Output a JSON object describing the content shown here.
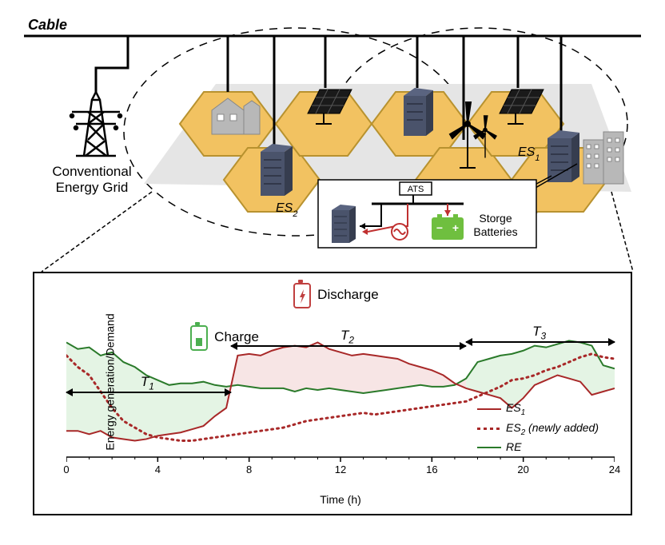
{
  "top": {
    "cable_label": "Cable",
    "grid_label_line1": "Conventional",
    "grid_label_line2": "Energy Grid",
    "es1_label": "ES",
    "es1_sub": "1",
    "es2_label": "ES",
    "es2_sub": "2",
    "ats_label": "ATS",
    "storage_label_line1": "Storge",
    "storage_label_line2": "Batteries",
    "colors": {
      "hex_fill": "#f2c261",
      "hex_stroke": "#b8922f",
      "server_fill": "#4a536b",
      "building_fill": "#b8b8b8",
      "cloud_stroke": "#000000",
      "battery_fill": "#6fbf3f",
      "ac_symbol": "#c03030"
    }
  },
  "chart": {
    "type": "line",
    "x_label": "Time (h)",
    "y_label": "Energy generation/Demand",
    "xlim": [
      0,
      24
    ],
    "xticks": [
      0,
      4,
      8,
      12,
      16,
      20,
      24
    ],
    "charge_label": "Charge",
    "discharge_label": "Discharge",
    "T1_label": "T",
    "T1_sub": "1",
    "T2_label": "T",
    "T2_sub": "2",
    "T3_label": "T",
    "T3_sub": "3",
    "T1_range": [
      0,
      7.2
    ],
    "T2_range": [
      7.2,
      17.5
    ],
    "T3_range": [
      17.5,
      24
    ],
    "legend": {
      "es1": "ES",
      "es1_sub": "1",
      "es2": "ES",
      "es2_sub": "2",
      "es2_suffix": " (newly added)",
      "re": "RE"
    },
    "colors": {
      "es1_line": "#a82828",
      "es2_line": "#a82828",
      "re_line": "#2a7a2a",
      "charge_fill": "#d8efd8",
      "discharge_fill": "#f4dada",
      "background": "#ffffff"
    },
    "line_width": 2,
    "series": {
      "re": [
        70,
        66,
        67,
        62,
        64,
        58,
        55,
        50,
        47,
        44,
        45,
        45,
        46,
        44,
        43,
        44,
        43,
        42,
        42,
        42,
        40,
        42,
        41,
        42,
        41,
        40,
        39,
        40,
        41,
        42,
        43,
        44,
        43,
        43,
        44,
        48,
        58,
        60,
        62,
        63,
        65,
        68,
        67,
        69,
        71,
        70,
        68,
        56,
        54
      ],
      "es1": [
        16,
        16,
        14,
        16,
        12,
        11,
        10,
        11,
        13,
        14,
        15,
        17,
        19,
        25,
        30,
        62,
        63,
        62,
        65,
        67,
        68,
        67,
        70,
        66,
        64,
        62,
        63,
        62,
        61,
        60,
        57,
        55,
        53,
        50,
        45,
        42,
        40,
        38,
        36,
        30,
        36,
        44,
        47,
        50,
        48,
        46,
        38,
        40,
        42
      ],
      "es2": [
        62,
        55,
        50,
        40,
        30,
        22,
        18,
        14,
        12,
        11,
        10,
        10,
        11,
        12,
        13,
        14,
        15,
        16,
        17,
        18,
        20,
        22,
        23,
        24,
        25,
        26,
        27,
        26,
        27,
        28,
        29,
        30,
        31,
        32,
        33,
        34,
        37,
        40,
        43,
        47,
        48,
        50,
        53,
        55,
        58,
        61,
        63,
        61,
        60
      ]
    }
  }
}
